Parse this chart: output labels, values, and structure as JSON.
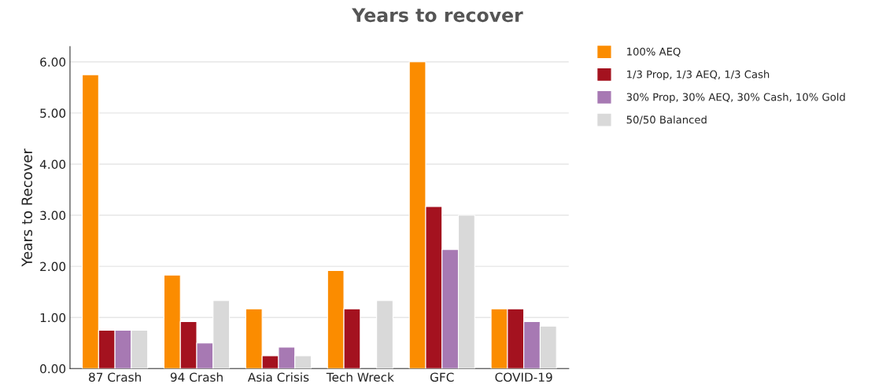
{
  "chart_data": {
    "type": "bar",
    "title": "Years to recover",
    "ylabel": "Years to Recover",
    "categories": [
      "87 Crash",
      "94 Crash",
      "Asia Crisis",
      "Tech Wreck",
      "GFC",
      "COVID-19"
    ],
    "series": [
      {
        "name": "100% AEQ",
        "color": "#fb8c00",
        "values": [
          5.75,
          1.83,
          1.17,
          1.92,
          6.0,
          1.17
        ]
      },
      {
        "name": "1/3 Prop, 1/3 AEQ, 1/3 Cash",
        "color": "#a4121f",
        "values": [
          0.75,
          0.92,
          0.25,
          1.17,
          3.17,
          1.17
        ]
      },
      {
        "name": "30% Prop, 30% AEQ, 30% Cash, 10% Gold",
        "color": "#a779b3",
        "values": [
          0.75,
          0.5,
          0.42,
          null,
          2.33,
          0.92
        ]
      },
      {
        "name": "50/50 Balanced",
        "color": "#d9d9d9",
        "values": [
          0.75,
          1.33,
          0.25,
          1.33,
          3.0,
          0.83
        ]
      }
    ],
    "ylim": [
      0,
      6.3
    ],
    "yticks": [
      {
        "value": 0,
        "label": "0.00"
      },
      {
        "value": 1,
        "label": "1.00"
      },
      {
        "value": 2,
        "label": "2.00"
      },
      {
        "value": 3,
        "label": "3.00"
      },
      {
        "value": 4,
        "label": "4.00"
      },
      {
        "value": 5,
        "label": "5.00"
      },
      {
        "value": 6,
        "label": "6.00"
      }
    ],
    "grid": "y",
    "legend": "top right"
  }
}
